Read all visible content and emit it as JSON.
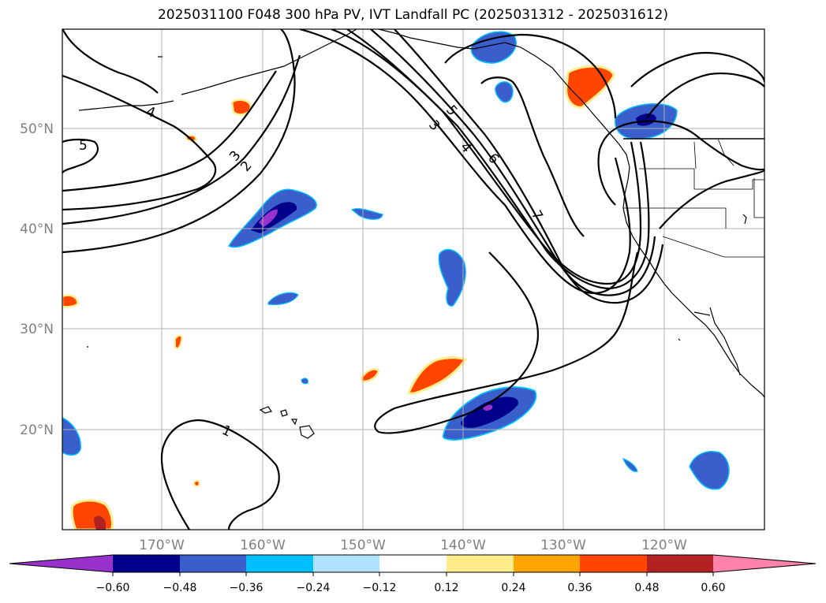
{
  "title": "2025031100 F048 300 hPa PV, IVT Landfall PC (2025031312 - 2025031612)",
  "map": {
    "lat_labels": [
      "50°N",
      "40°N",
      "30°N",
      "20°N"
    ],
    "lon_labels": [
      "170°W",
      "160°W",
      "150°W",
      "140°W",
      "130°W",
      "120°W"
    ]
  },
  "contour_labels": [
    "1",
    "2",
    "3",
    "3",
    "4",
    "4",
    "5",
    "5",
    "6",
    "7"
  ],
  "colorbar": {
    "ticks": [
      "−0.60",
      "−0.48",
      "−0.36",
      "−0.24",
      "−0.12",
      "0.12",
      "0.24",
      "0.36",
      "0.48",
      "0.60"
    ],
    "colors": [
      "#9932cc",
      "#00008b",
      "#3a5fcd",
      "#00bfff",
      "#b0e2ff",
      "#ffffff",
      "#ffec8b",
      "#ffa500",
      "#ff4500",
      "#b22222",
      "#ff82ab"
    ]
  }
}
